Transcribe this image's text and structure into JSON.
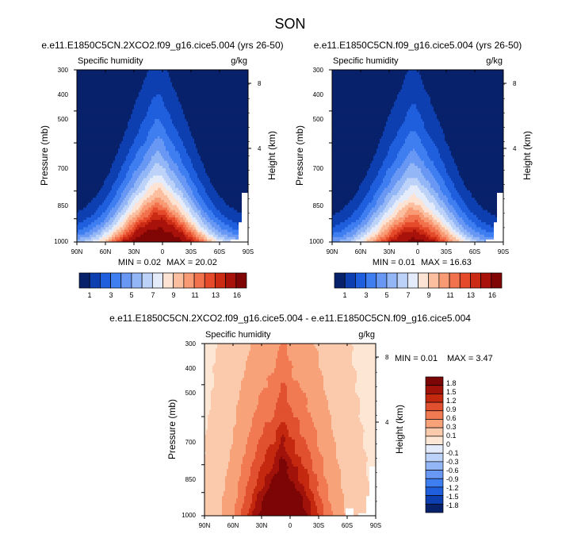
{
  "figure_title": "SON",
  "chart_data": [
    {
      "type": "heatmap",
      "title": "e.e11.E1850C5CN.2XCO2.f09_g16.cice5.004 (yrs 26-50)",
      "left_label": "Specific humidity",
      "units": "g/kg",
      "ylabel": "Pressure (mb)",
      "ylabel_right": "Height (km)",
      "x_ticks": [
        "90N",
        "60N",
        "30N",
        "0",
        "30S",
        "60S",
        "90S"
      ],
      "y_ticks": [
        "300",
        "400",
        "500",
        "700",
        "850",
        "1000"
      ],
      "y_ticks_right": [
        "8",
        "4"
      ],
      "min_text": "MIN =  0.02",
      "max_text": "MAX = 20.02",
      "min": 0.02,
      "max": 20.02,
      "levels": [
        1,
        2,
        3,
        4,
        5,
        6,
        7,
        8,
        9,
        10,
        11,
        12,
        13,
        14,
        16
      ],
      "colorbar_labels": [
        "1",
        "3",
        "5",
        "7",
        "9",
        "11",
        "13",
        "16"
      ]
    },
    {
      "type": "heatmap",
      "title": "e.e11.E1850C5CN.f09_g16.cice5.004 (yrs 26-50)",
      "left_label": "Specific humidity",
      "units": "g/kg",
      "ylabel": "Pressure (mb)",
      "ylabel_right": "Height (km)",
      "x_ticks": [
        "90N",
        "60N",
        "30N",
        "0",
        "30S",
        "60S",
        "90S"
      ],
      "y_ticks": [
        "300",
        "400",
        "500",
        "700",
        "850",
        "1000"
      ],
      "y_ticks_right": [
        "8",
        "4"
      ],
      "min_text": "MIN =  0.01",
      "max_text": "MAX = 16.63",
      "min": 0.01,
      "max": 16.63,
      "levels": [
        1,
        2,
        3,
        4,
        5,
        6,
        7,
        8,
        9,
        10,
        11,
        12,
        13,
        14,
        16
      ],
      "colorbar_labels": [
        "1",
        "3",
        "5",
        "7",
        "9",
        "11",
        "13",
        "16"
      ]
    },
    {
      "type": "heatmap",
      "title": "e.e11.E1850C5CN.2XCO2.f09_g16.cice5.004 - e.e11.E1850C5CN.f09_g16.cice5.004",
      "left_label": "Specific humidity",
      "units": "g/kg",
      "ylabel": "Pressure (mb)",
      "ylabel_right": "Height (km)",
      "x_ticks": [
        "90N",
        "60N",
        "30N",
        "0",
        "30S",
        "60S",
        "90S"
      ],
      "y_ticks": [
        "300",
        "400",
        "500",
        "700",
        "850",
        "1000"
      ],
      "y_ticks_right": [
        "8",
        "4"
      ],
      "min_text": "MIN =  0.01",
      "max_text": "MAX =  3.47",
      "min": 0.01,
      "max": 3.47,
      "levels": [
        -1.8,
        -1.5,
        -1.2,
        -0.9,
        -0.6,
        -0.3,
        -0.1,
        0,
        0.1,
        0.3,
        0.6,
        0.9,
        1.2,
        1.5,
        1.8
      ],
      "colorbar_labels": [
        "1.8",
        "1.5",
        "1.2",
        "0.9",
        "0.6",
        "0.3",
        "0.1",
        "0",
        "-0.1",
        "-0.3",
        "-0.6",
        "-0.9",
        "-1.2",
        "-1.5",
        "-1.8"
      ]
    }
  ],
  "colors": {
    "palette": [
      "#08216b",
      "#0d3fb0",
      "#1f5fde",
      "#3f7ef0",
      "#6898f4",
      "#93b6f6",
      "#bcd2f8",
      "#e4ecfb",
      "#fde3d3",
      "#fbbfa0",
      "#f89a74",
      "#f2724d",
      "#e54a2b",
      "#cb2a14",
      "#a8120a",
      "#800505"
    ],
    "diff_palette": [
      "#08216b",
      "#0d3fb0",
      "#1f5fde",
      "#3f7ef0",
      "#6898f4",
      "#93b6f6",
      "#bcd2f8",
      "#e4ecfb",
      "#fde6d3",
      "#fbc9ab",
      "#f8a27a",
      "#f27a52",
      "#e1502f",
      "#c4280f",
      "#a0120a",
      "#7c0505"
    ],
    "missing": "#ffffff"
  }
}
